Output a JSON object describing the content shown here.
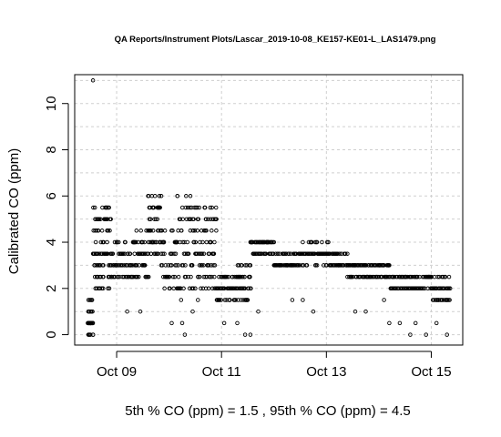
{
  "chart_data": {
    "type": "scatter",
    "title": "QA Reports/Instrument Plots/Lascar_2019-10-08_KE157-KE01-L_LAS1479.png",
    "xlabel": "",
    "ylabel": "Calibrated CO (ppm)",
    "footer": "5th % CO (ppm) =  1.5 , 95th % CO (ppm)  =  4.5",
    "x_unit": "days (Oct 2019)",
    "xlim": [
      8.2,
      15.6
    ],
    "ylim": [
      -0.45,
      11.25
    ],
    "x_ticks": [
      {
        "value": 9,
        "label": "Oct 09"
      },
      {
        "value": 11,
        "label": "Oct 11"
      },
      {
        "value": 13,
        "label": "Oct 13"
      },
      {
        "value": 15,
        "label": "Oct 15"
      }
    ],
    "y_ticks": [
      {
        "value": 0,
        "label": "0"
      },
      {
        "value": 2,
        "label": "2"
      },
      {
        "value": 4,
        "label": "4"
      },
      {
        "value": 6,
        "label": "6"
      },
      {
        "value": 8,
        "label": "8"
      },
      {
        "value": 10,
        "label": "10"
      }
    ],
    "grid": true,
    "marker": "open-circle",
    "segments": [
      {
        "x": [
          8.45,
          8.55
        ],
        "y": [
          0,
          1.5
        ],
        "n": 24
      },
      {
        "x": [
          8.55,
          8.9
        ],
        "y": [
          2,
          5.5
        ],
        "n": 70
      },
      {
        "x": [
          8.9,
          9.35
        ],
        "y": [
          2.5,
          4.0
        ],
        "n": 50
      },
      {
        "x": [
          9.35,
          9.6
        ],
        "y": [
          2.5,
          5.0
        ],
        "n": 30
      },
      {
        "x": [
          9.6,
          9.85
        ],
        "y": [
          3.5,
          6.0
        ],
        "n": 35
      },
      {
        "x": [
          9.85,
          10.15
        ],
        "y": [
          2.0,
          4.5
        ],
        "n": 30
      },
      {
        "x": [
          10.15,
          10.5
        ],
        "y": [
          1.5,
          6.0
        ],
        "n": 45
      },
      {
        "x": [
          10.5,
          10.9
        ],
        "y": [
          2.0,
          5.5
        ],
        "n": 55
      },
      {
        "x": [
          10.9,
          11.3
        ],
        "y": [
          1.5,
          2.5
        ],
        "n": 40
      },
      {
        "x": [
          11.3,
          11.55
        ],
        "y": [
          1.5,
          3.0
        ],
        "n": 30
      },
      {
        "x": [
          11.55,
          12.0
        ],
        "y": [
          3.5,
          4.0
        ],
        "n": 45
      },
      {
        "x": [
          12.0,
          12.55
        ],
        "y": [
          3.0,
          3.5
        ],
        "n": 45
      },
      {
        "x": [
          12.55,
          13.05
        ],
        "y": [
          3.0,
          4.0
        ],
        "n": 45
      },
      {
        "x": [
          13.05,
          13.4
        ],
        "y": [
          3.0,
          3.5
        ],
        "n": 30
      },
      {
        "x": [
          13.4,
          14.2
        ],
        "y": [
          2.5,
          3.0
        ],
        "n": 70
      },
      {
        "x": [
          14.2,
          15.0
        ],
        "y": [
          2.0,
          2.5
        ],
        "n": 65
      },
      {
        "x": [
          15.0,
          15.35
        ],
        "y": [
          1.5,
          2.5
        ],
        "n": 35
      }
    ],
    "outliers": [
      {
        "x": 8.55,
        "y": 11.0
      },
      {
        "x": 9.2,
        "y": 1.0
      },
      {
        "x": 9.45,
        "y": 1.0
      },
      {
        "x": 10.05,
        "y": 0.5
      },
      {
        "x": 10.25,
        "y": 0.5
      },
      {
        "x": 10.3,
        "y": 0.0
      },
      {
        "x": 10.45,
        "y": 1.0
      },
      {
        "x": 10.55,
        "y": 1.5
      },
      {
        "x": 11.05,
        "y": 0.5
      },
      {
        "x": 11.3,
        "y": 0.5
      },
      {
        "x": 11.45,
        "y": 0.0
      },
      {
        "x": 11.55,
        "y": 0.0
      },
      {
        "x": 11.7,
        "y": 1.0
      },
      {
        "x": 12.35,
        "y": 1.5
      },
      {
        "x": 12.55,
        "y": 1.5
      },
      {
        "x": 12.75,
        "y": 1.0
      },
      {
        "x": 13.55,
        "y": 1.0
      },
      {
        "x": 13.75,
        "y": 1.0
      },
      {
        "x": 14.1,
        "y": 1.5
      },
      {
        "x": 14.2,
        "y": 0.5
      },
      {
        "x": 14.4,
        "y": 0.5
      },
      {
        "x": 14.6,
        "y": 0.0
      },
      {
        "x": 14.7,
        "y": 0.5
      },
      {
        "x": 14.9,
        "y": 0.0
      },
      {
        "x": 15.1,
        "y": 0.5
      },
      {
        "x": 15.3,
        "y": 0.0
      }
    ]
  }
}
